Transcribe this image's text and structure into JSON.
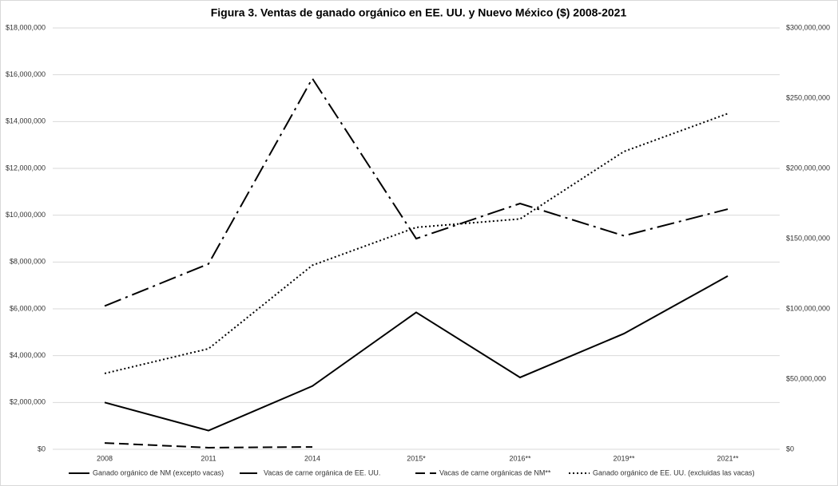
{
  "chart_data": {
    "type": "line",
    "title": "Figura 3. Ventas de ganado orgánico en EE. UU. y Nuevo México ($) 2008-2021",
    "categories": [
      "2008",
      "2011",
      "2014",
      "2015*",
      "2016**",
      "2019**",
      "2021**"
    ],
    "ylim": [
      0,
      18000000
    ],
    "yticks": [
      {
        "value": 0,
        "label": "$0"
      },
      {
        "value": 2000000,
        "label": "$2,000,000"
      },
      {
        "value": 4000000,
        "label": "$4,000,000"
      },
      {
        "value": 6000000,
        "label": "$6,000,000"
      },
      {
        "value": 8000000,
        "label": "$8,000,000"
      },
      {
        "value": 10000000,
        "label": "$10,000,000"
      },
      {
        "value": 12000000,
        "label": "$12,000,000"
      },
      {
        "value": 14000000,
        "label": "$14,000,000"
      },
      {
        "value": 16000000,
        "label": "$16,000,000"
      },
      {
        "value": 18000000,
        "label": "$18,000,000"
      }
    ],
    "y2lim": [
      0,
      300000000
    ],
    "y2ticks": [
      {
        "value": 0,
        "label": "$0"
      },
      {
        "value": 50000000,
        "label": "$50,000,000"
      },
      {
        "value": 100000000,
        "label": "$100,000,000"
      },
      {
        "value": 150000000,
        "label": "$150,000,000"
      },
      {
        "value": 200000000,
        "label": "$200,000,000"
      },
      {
        "value": 250000000,
        "label": "$250,000,000"
      },
      {
        "value": 300000000,
        "label": "$300,000,000"
      }
    ],
    "grid": true,
    "legend": "bottom",
    "series": [
      {
        "name": "Ganado orgánico de NM (excepto vacas)",
        "color": "#000000",
        "dash": "solid",
        "values": [
          2000000,
          800000,
          2700000,
          5850000,
          3070000,
          4940000,
          7400000
        ]
      },
      {
        "name": "Vacas de carne orgánica de EE. UU.",
        "color": "#000000",
        "dash": "dashdot",
        "axis": "y2",
        "values": [
          102000000,
          132000000,
          264000000,
          150000000,
          175000000,
          152000000,
          171000000
        ]
      },
      {
        "name": "Vacas de carne orgánicas de NM**",
        "color": "#000000",
        "dash": "dash",
        "values": [
          270000,
          70000,
          100000,
          null,
          null,
          null,
          null
        ]
      },
      {
        "name": "Ganado orgánico de EE. UU. (excluidas las vacas)",
        "color": "#000000",
        "dash": "dot",
        "axis": "y2",
        "values": [
          54000000,
          71600000,
          131000000,
          158000000,
          164000000,
          212000000,
          239000000
        ]
      }
    ]
  }
}
